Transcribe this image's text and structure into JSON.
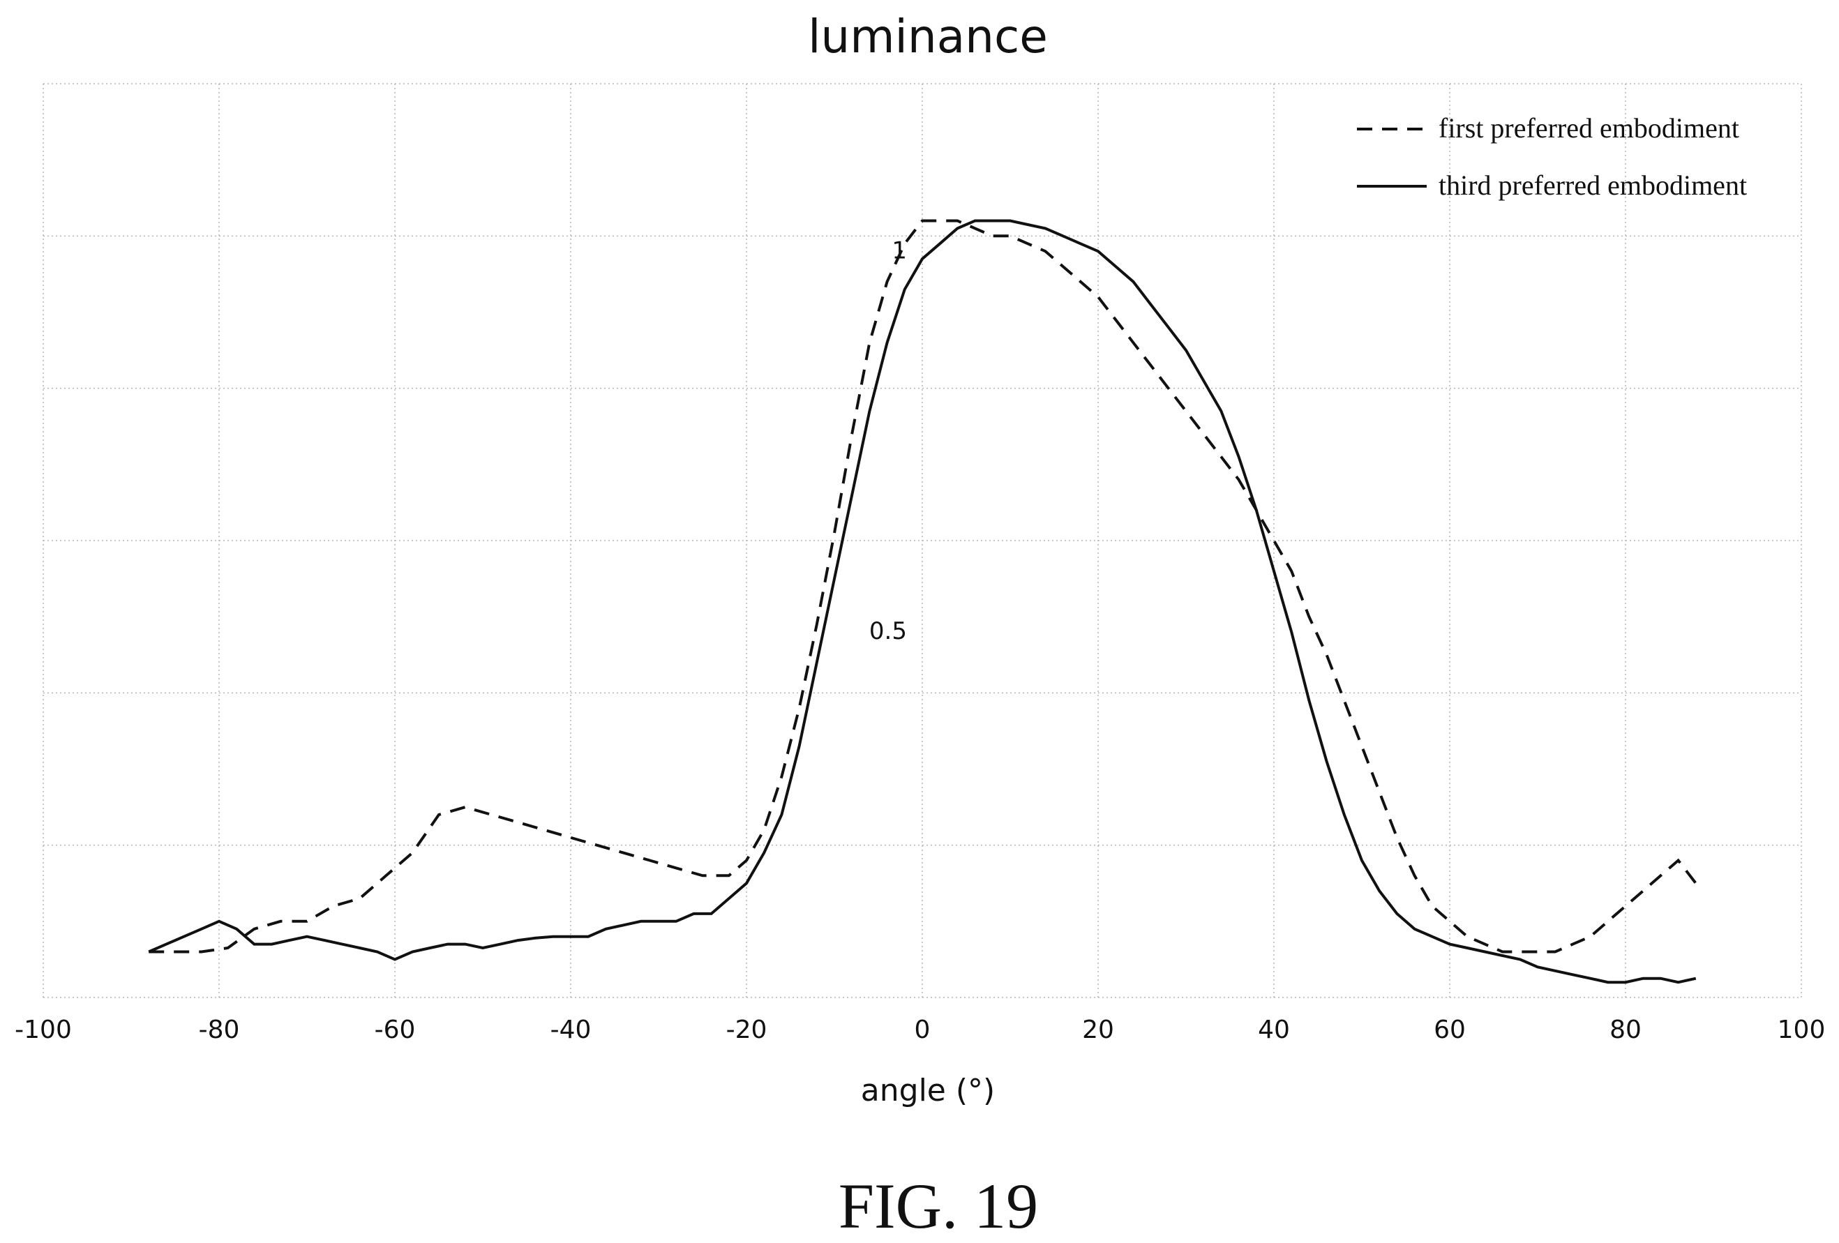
{
  "chart_data": {
    "type": "line",
    "title": "luminance",
    "xlabel": "angle (°)",
    "ylabel": "",
    "xlim": [
      -100,
      100
    ],
    "ylim": [
      0,
      1.2
    ],
    "x_ticks": [
      "-100",
      "-80",
      "-60",
      "-40",
      "-20",
      "0",
      "20",
      "40",
      "60",
      "80",
      "100"
    ],
    "y_ticks": [
      {
        "value": 1,
        "label": "1"
      },
      {
        "value": 0.5,
        "label": "0.5"
      }
    ],
    "grid": true,
    "legend_position": "top-right",
    "series": [
      {
        "name": "first preferred embodiment",
        "style": "dashed",
        "x": [
          -88,
          -85,
          -82,
          -79,
          -76,
          -73,
          -70,
          -67,
          -64,
          -61,
          -58,
          -55,
          -52,
          -49,
          -46,
          -43,
          -40,
          -37,
          -34,
          -31,
          -28,
          -25,
          -22,
          -20,
          -18,
          -16,
          -14,
          -12,
          -10,
          -8,
          -6,
          -4,
          -2,
          0,
          2,
          4,
          6,
          8,
          10,
          12,
          14,
          16,
          18,
          20,
          22,
          24,
          26,
          28,
          30,
          32,
          34,
          36,
          38,
          40,
          42,
          44,
          46,
          48,
          50,
          52,
          54,
          56,
          58,
          60,
          62,
          64,
          66,
          68,
          70,
          72,
          74,
          76,
          78,
          80,
          82,
          84,
          86,
          88
        ],
        "y": [
          0.06,
          0.06,
          0.06,
          0.065,
          0.09,
          0.1,
          0.1,
          0.12,
          0.13,
          0.16,
          0.19,
          0.24,
          0.25,
          0.24,
          0.23,
          0.22,
          0.21,
          0.2,
          0.19,
          0.18,
          0.17,
          0.16,
          0.16,
          0.18,
          0.22,
          0.29,
          0.38,
          0.49,
          0.61,
          0.74,
          0.86,
          0.94,
          0.99,
          1.02,
          1.02,
          1.02,
          1.01,
          1.0,
          1.0,
          0.99,
          0.98,
          0.96,
          0.94,
          0.92,
          0.89,
          0.86,
          0.83,
          0.8,
          0.77,
          0.74,
          0.71,
          0.68,
          0.64,
          0.6,
          0.56,
          0.5,
          0.45,
          0.39,
          0.33,
          0.27,
          0.21,
          0.16,
          0.12,
          0.1,
          0.08,
          0.07,
          0.06,
          0.06,
          0.06,
          0.06,
          0.07,
          0.08,
          0.1,
          0.12,
          0.14,
          0.16,
          0.18,
          0.15
        ]
      },
      {
        "name": "third preferred embodiment",
        "style": "solid",
        "x": [
          -88,
          -86,
          -84,
          -82,
          -80,
          -78,
          -76,
          -74,
          -72,
          -70,
          -68,
          -66,
          -64,
          -62,
          -60,
          -58,
          -56,
          -54,
          -52,
          -50,
          -48,
          -46,
          -44,
          -42,
          -40,
          -38,
          -36,
          -34,
          -32,
          -30,
          -28,
          -26,
          -24,
          -22,
          -20,
          -18,
          -16,
          -14,
          -12,
          -10,
          -8,
          -6,
          -4,
          -2,
          0,
          2,
          4,
          6,
          8,
          10,
          12,
          14,
          16,
          18,
          20,
          22,
          24,
          26,
          28,
          30,
          32,
          34,
          36,
          38,
          40,
          42,
          44,
          46,
          48,
          50,
          52,
          54,
          56,
          58,
          60,
          62,
          64,
          66,
          68,
          70,
          72,
          74,
          76,
          78,
          80,
          82,
          84,
          86,
          88
        ],
        "y": [
          0.06,
          0.07,
          0.08,
          0.09,
          0.1,
          0.09,
          0.07,
          0.07,
          0.075,
          0.08,
          0.075,
          0.07,
          0.065,
          0.06,
          0.05,
          0.06,
          0.065,
          0.07,
          0.07,
          0.065,
          0.07,
          0.075,
          0.078,
          0.08,
          0.08,
          0.08,
          0.09,
          0.095,
          0.1,
          0.1,
          0.1,
          0.11,
          0.11,
          0.13,
          0.15,
          0.19,
          0.24,
          0.33,
          0.44,
          0.55,
          0.66,
          0.77,
          0.86,
          0.93,
          0.97,
          0.99,
          1.01,
          1.02,
          1.02,
          1.02,
          1.015,
          1.01,
          1.0,
          0.99,
          0.98,
          0.96,
          0.94,
          0.91,
          0.88,
          0.85,
          0.81,
          0.77,
          0.71,
          0.64,
          0.56,
          0.48,
          0.39,
          0.31,
          0.24,
          0.18,
          0.14,
          0.11,
          0.09,
          0.08,
          0.07,
          0.065,
          0.06,
          0.055,
          0.05,
          0.04,
          0.035,
          0.03,
          0.025,
          0.02,
          0.02,
          0.025,
          0.025,
          0.02,
          0.025
        ]
      }
    ],
    "caption": "FIG. 19",
    "colors": {
      "line": "#111111",
      "grid": "#b5b5b5",
      "background": "#ffffff"
    }
  }
}
